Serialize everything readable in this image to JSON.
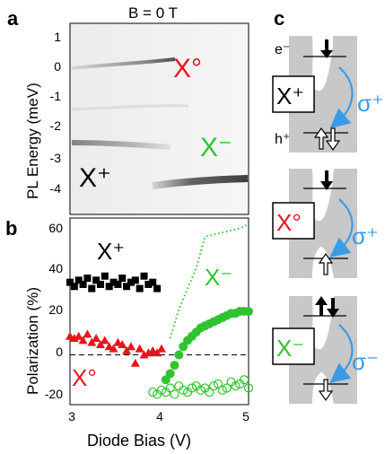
{
  "panel_labels": {
    "a": "a",
    "b": "b",
    "c": "c"
  },
  "panel_a": {
    "title": "B = 0 T",
    "ylabel": "PL Energy (meV)",
    "y_ticks": [
      "1",
      "0",
      "-1",
      "-2",
      "-3",
      "-4"
    ],
    "labels": {
      "x0": "X°",
      "xplus": "X⁺",
      "xminus": "X⁻"
    }
  },
  "panel_b": {
    "ylabel": "Polarization (%)",
    "xlabel": "Diode Bias (V)",
    "x_ticks": [
      "3",
      "4",
      "5"
    ],
    "y_ticks": [
      "60",
      "40",
      "20",
      "0",
      "-20"
    ],
    "labels": {
      "x0": "X°",
      "xplus": "X⁺",
      "xminus": "X⁻"
    }
  },
  "panel_c": {
    "e_label": "e⁻",
    "h_label": "h⁺",
    "boxes": [
      "X⁺",
      "X°",
      "X⁻"
    ],
    "sigmas": [
      "σ⁺",
      "σ⁺",
      "σ⁻"
    ]
  },
  "colors": {
    "red": "#e8141c",
    "green": "#2fc42f",
    "blue": "#3a9be6",
    "grey": "#c8c8c8",
    "black": "#000000"
  },
  "chart_data": {
    "type": "scatter",
    "xlabel": "Diode Bias (V)",
    "ylabel": "Polarization (%)",
    "xlim": [
      2.95,
      5.0
    ],
    "ylim": [
      -24,
      66
    ],
    "series": [
      {
        "name": "X⁺",
        "marker": "square",
        "color": "#000000",
        "x": [
          2.95,
          3.0,
          3.05,
          3.1,
          3.15,
          3.2,
          3.25,
          3.3,
          3.35,
          3.4,
          3.45,
          3.5,
          3.55,
          3.6,
          3.65,
          3.7,
          3.75,
          3.8,
          3.85,
          3.9,
          3.95
        ],
        "y": [
          35,
          33,
          36,
          34,
          37,
          32,
          36,
          34,
          38,
          33,
          35,
          34,
          37,
          33,
          35,
          36,
          32,
          38,
          34,
          35,
          32
        ]
      },
      {
        "name": "X°",
        "marker": "triangle",
        "color": "#e8141c",
        "x": [
          2.95,
          3.0,
          3.05,
          3.1,
          3.15,
          3.2,
          3.25,
          3.3,
          3.35,
          3.4,
          3.45,
          3.5,
          3.55,
          3.6,
          3.65,
          3.7,
          3.75,
          3.8,
          3.85,
          3.9,
          3.95,
          4.0
        ],
        "y": [
          9,
          8,
          9,
          7,
          10,
          6,
          8,
          5,
          7,
          4,
          3,
          6,
          5,
          2,
          4,
          -4,
          3,
          0,
          1,
          2,
          1,
          3
        ]
      },
      {
        "name": "X⁻ (filled)",
        "marker": "circle-filled",
        "color": "#2fc42f",
        "x": [
          4.05,
          4.1,
          4.15,
          4.2,
          4.25,
          4.3,
          4.35,
          4.4,
          4.45,
          4.5,
          4.55,
          4.6,
          4.65,
          4.7,
          4.75,
          4.8,
          4.85,
          4.9,
          4.95,
          5.0
        ],
        "y": [
          -12,
          -9,
          -5,
          0,
          4,
          7,
          9,
          11,
          13,
          14,
          15,
          16,
          17,
          18,
          19,
          20,
          20,
          21,
          21,
          21
        ]
      },
      {
        "name": "X⁻ (open)",
        "marker": "circle-open",
        "color": "#2fc42f",
        "x": [
          4.0,
          4.05,
          4.1,
          4.15,
          4.2,
          4.25,
          4.3,
          4.35,
          4.4,
          4.45,
          4.5,
          4.55,
          4.6,
          4.65,
          4.7,
          4.75,
          4.8,
          4.85,
          4.9,
          4.95,
          5.0,
          3.9,
          3.95
        ],
        "y": [
          -17,
          -18,
          -16,
          -19,
          -15,
          -17,
          -18,
          -16,
          -15,
          -17,
          -16,
          -18,
          -15,
          -14,
          -17,
          -16,
          -13,
          -15,
          -14,
          -12,
          -16,
          -18,
          -19
        ]
      },
      {
        "name": "X⁻ (dotted)",
        "marker": "line-dotted",
        "color": "#2fc42f",
        "x": [
          4.1,
          4.2,
          4.3,
          4.4,
          4.5,
          4.6,
          4.7,
          4.8,
          4.9,
          5.0
        ],
        "y": [
          8,
          22,
          32,
          42,
          57,
          58,
          59,
          60,
          61,
          63
        ]
      }
    ],
    "reference_line": {
      "y": 0,
      "style": "dashed"
    }
  }
}
